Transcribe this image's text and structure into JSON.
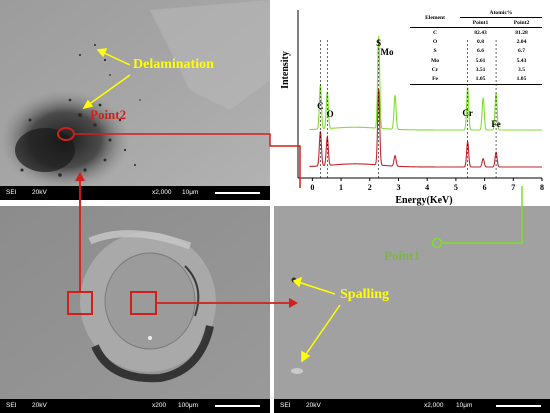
{
  "sem_panels": {
    "top_left": {
      "detector": "SEI",
      "voltage": "20kV",
      "magnification": "x2,000",
      "scale": "10μm"
    },
    "bottom_left": {
      "detector": "SEI",
      "voltage": "20kV",
      "magnification": "x200",
      "scale": "100μm"
    },
    "bottom_right": {
      "detector": "SEI",
      "voltage": "20kV",
      "magnification": "x2,000",
      "scale": "10μm"
    }
  },
  "annotations": {
    "delamination": "Delamination",
    "point2": "Point2",
    "point1": "Point1",
    "spalling": "Spalling"
  },
  "colors": {
    "point1": "#7fdf2f",
    "point2": "#c0272d",
    "label_yellow": "#ffff00",
    "frame_red": "#d0201b",
    "label_green": "#7fb24c"
  },
  "table": {
    "header_element": "Element",
    "header_group": "Atomic%",
    "header_p1": "Point1",
    "header_p2": "Point2",
    "rows": [
      {
        "el": "C",
        "p1": "82.43",
        "p2": "81.28"
      },
      {
        "el": "O",
        "p1": "0.8",
        "p2": "2.04"
      },
      {
        "el": "S",
        "p1": "6.6",
        "p2": "6.7"
      },
      {
        "el": "Mo",
        "p1": "5.61",
        "p2": "5.43"
      },
      {
        "el": "Cr",
        "p1": "3.51",
        "p2": "3.5"
      },
      {
        "el": "Fe",
        "p1": "1.05",
        "p2": "1.05"
      }
    ]
  },
  "chart_data": {
    "type": "line",
    "xlabel": "Energy(KeV)",
    "ylabel": "Intensity",
    "xlim": [
      -0.5,
      8
    ],
    "xticks": [
      "0",
      "1",
      "2",
      "3",
      "4",
      "5",
      "6",
      "7",
      "8"
    ],
    "grid": false,
    "series": [
      {
        "name": "Point1",
        "peaks": [
          {
            "x": 0.28,
            "y": 0.48
          },
          {
            "x": 0.52,
            "y": 0.4
          },
          {
            "x": 2.31,
            "y": 1.0
          },
          {
            "x": 2.88,
            "y": 0.37
          },
          {
            "x": 5.41,
            "y": 0.46
          },
          {
            "x": 5.95,
            "y": 0.35
          },
          {
            "x": 6.4,
            "y": 0.4
          }
        ]
      },
      {
        "name": "Point2",
        "peaks": [
          {
            "x": 0.28,
            "y": 0.33
          },
          {
            "x": 0.52,
            "y": 0.27
          },
          {
            "x": 2.31,
            "y": 0.72
          },
          {
            "x": 2.88,
            "y": 0.1
          },
          {
            "x": 5.41,
            "y": 0.24
          },
          {
            "x": 5.95,
            "y": 0.08
          },
          {
            "x": 6.4,
            "y": 0.14
          }
        ]
      }
    ],
    "peak_labels": [
      "C",
      "O",
      "S",
      "Mo",
      "Cr",
      "Fe"
    ]
  }
}
